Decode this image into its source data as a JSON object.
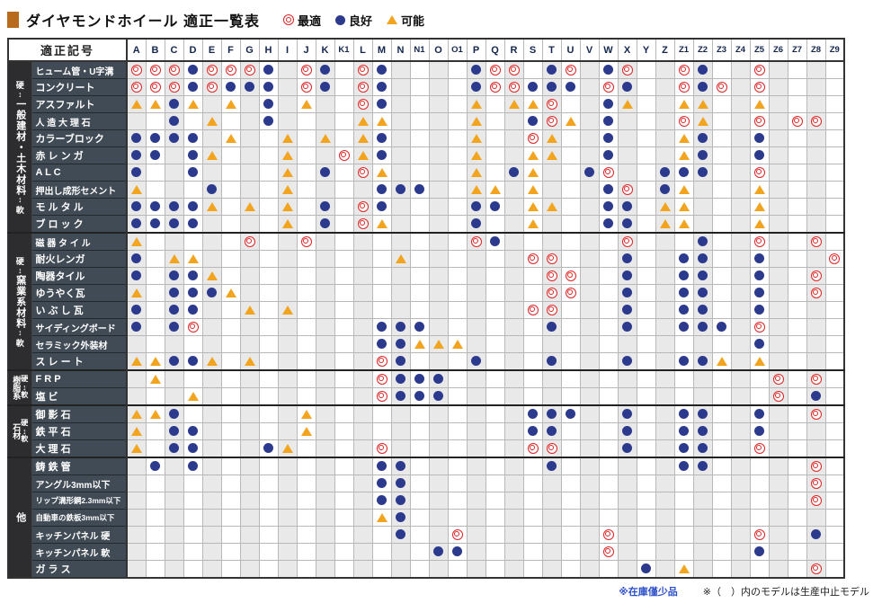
{
  "title": "ダイヤモンドホイール 適正一覧表",
  "corner_label": "適正記号",
  "legend": {
    "best": "最適",
    "good": "良好",
    "possible": "可能"
  },
  "hard_label": "硬",
  "soft_label": "軟",
  "arrow": "↕",
  "colors": {
    "best": "#dd2525",
    "good": "#2c3a8e",
    "possible": "#f2a41f",
    "accent": "#b96b1d",
    "label_bg": "#414b55",
    "group_bg": "#2d2d2f"
  },
  "columns": [
    "A",
    "B",
    "C",
    "D",
    "E",
    "F",
    "G",
    "H",
    "I",
    "J",
    "K",
    "K1",
    "L",
    "M",
    "N",
    "N1",
    "O",
    "O1",
    "P",
    "Q",
    "R",
    "S",
    "T",
    "U",
    "V",
    "W",
    "X",
    "Y",
    "Z",
    "Z1",
    "Z2",
    "Z3",
    "Z4",
    "Z5",
    "Z6",
    "Z7",
    "Z8",
    "Z9"
  ],
  "symbol_codes": {
    "b": "best",
    "g": "good",
    "p": "possible"
  },
  "groups": [
    {
      "name": "一般建材・土木材料",
      "hard_soft": "vertical",
      "rows": [
        {
          "label": "ヒューム管・U字溝",
          "marks": {
            "A": "b",
            "B": "b",
            "C": "b",
            "D": "g",
            "E": "b",
            "F": "b",
            "G": "b",
            "H": "g",
            "J": "b",
            "K": "g",
            "L": "b",
            "M": "g",
            "P": "g",
            "Q": "b",
            "R": "b",
            "T": "g",
            "U": "b",
            "W": "g",
            "X": "b",
            "Z1": "b",
            "Z2": "g",
            "Z5": "b"
          }
        },
        {
          "label": "コンクリート",
          "marks": {
            "A": "b",
            "B": "b",
            "C": "b",
            "D": "g",
            "E": "b",
            "F": "g",
            "G": "g",
            "H": "g",
            "J": "b",
            "K": "g",
            "L": "b",
            "M": "g",
            "P": "g",
            "Q": "b",
            "R": "b",
            "S": "g",
            "T": "g",
            "U": "g",
            "W": "b",
            "X": "g",
            "Z1": "b",
            "Z2": "g",
            "Z3": "b",
            "Z5": "b"
          }
        },
        {
          "label": "アスファルト",
          "marks": {
            "A": "p",
            "B": "p",
            "C": "g",
            "D": "p",
            "F": "p",
            "H": "g",
            "J": "p",
            "L": "b",
            "M": "g",
            "P": "p",
            "R": "p",
            "S": "p",
            "T": "b",
            "W": "g",
            "X": "p",
            "Z1": "p",
            "Z2": "p",
            "Z5": "p"
          }
        },
        {
          "label": "人 造 大 理 石",
          "marks": {
            "C": "g",
            "E": "p",
            "H": "g",
            "L": "p",
            "M": "p",
            "P": "p",
            "S": "g",
            "T": "b",
            "U": "p",
            "W": "g",
            "Z1": "b",
            "Z2": "p",
            "Z5": "b",
            "Z7": "b",
            "Z8": "b"
          }
        },
        {
          "label": "カラーブロック",
          "marks": {
            "A": "g",
            "B": "g",
            "C": "g",
            "D": "g",
            "F": "p",
            "I": "p",
            "K": "p",
            "L": "p",
            "M": "g",
            "P": "p",
            "S": "b",
            "T": "p",
            "W": "g",
            "Z1": "p",
            "Z2": "g",
            "Z5": "g"
          }
        },
        {
          "label": "赤 レ ン ガ",
          "marks": {
            "A": "g",
            "B": "g",
            "D": "g",
            "E": "p",
            "I": "p",
            "K1": "b",
            "L": "p",
            "M": "g",
            "P": "p",
            "S": "p",
            "T": "p",
            "W": "g",
            "Z1": "p",
            "Z2": "g",
            "Z5": "g"
          }
        },
        {
          "label": "A L C",
          "marks": {
            "A": "g",
            "D": "g",
            "I": "p",
            "K": "g",
            "L": "b",
            "M": "p",
            "P": "p",
            "R": "g",
            "S": "p",
            "V": "g",
            "W": "b",
            "Z": "g",
            "Z1": "g",
            "Z2": "g",
            "Z5": "b"
          }
        },
        {
          "label": "押出し成形セメント",
          "marks": {
            "A": "p",
            "E": "g",
            "I": "p",
            "M": "g",
            "N": "g",
            "N1": "g",
            "P": "p",
            "Q": "p",
            "S": "p",
            "W": "g",
            "X": "b",
            "Z": "g",
            "Z1": "p",
            "Z5": "p"
          }
        },
        {
          "label": "モ ル タ ル",
          "marks": {
            "A": "g",
            "B": "g",
            "C": "g",
            "D": "g",
            "E": "p",
            "G": "p",
            "I": "p",
            "K": "g",
            "L": "b",
            "M": "g",
            "P": "g",
            "Q": "g",
            "S": "p",
            "T": "p",
            "W": "g",
            "X": "g",
            "Z": "p",
            "Z1": "p",
            "Z5": "p"
          }
        },
        {
          "label": "ブ ロ ッ ク",
          "marks": {
            "A": "g",
            "B": "g",
            "C": "g",
            "D": "g",
            "I": "p",
            "K": "g",
            "L": "b",
            "M": "p",
            "P": "g",
            "S": "p",
            "W": "g",
            "X": "g",
            "Z": "p",
            "Z1": "p",
            "Z5": "p"
          }
        }
      ]
    },
    {
      "name": "窯業系材料",
      "hard_soft": "vertical",
      "rows": [
        {
          "label": "磁 器 タ イ ル",
          "marks": {
            "A": "p",
            "G": "b",
            "J": "b",
            "P": "b",
            "Q": "g",
            "X": "b",
            "Z2": "g",
            "Z5": "b",
            "Z8": "b"
          }
        },
        {
          "label": "耐火レンガ",
          "marks": {
            "A": "g",
            "C": "p",
            "D": "p",
            "N": "p",
            "S": "b",
            "T": "b",
            "X": "g",
            "Z1": "g",
            "Z2": "g",
            "Z5": "g",
            "Z9": "b"
          }
        },
        {
          "label": "陶器タイル",
          "marks": {
            "A": "g",
            "C": "g",
            "D": "g",
            "E": "p",
            "T": "b",
            "U": "b",
            "X": "g",
            "Z1": "g",
            "Z2": "g",
            "Z5": "g",
            "Z8": "b"
          }
        },
        {
          "label": "ゆうやく瓦",
          "marks": {
            "A": "p",
            "C": "g",
            "D": "g",
            "E": "g",
            "F": "p",
            "T": "b",
            "U": "b",
            "X": "g",
            "Z1": "g",
            "Z2": "g",
            "Z5": "g",
            "Z8": "b"
          }
        },
        {
          "label": "い ぶ し 瓦",
          "marks": {
            "A": "g",
            "C": "g",
            "D": "g",
            "G": "p",
            "I": "p",
            "S": "b",
            "T": "b",
            "X": "g",
            "Z1": "g",
            "Z2": "g",
            "Z5": "g"
          }
        },
        {
          "label": "サイディングボード",
          "marks": {
            "A": "g",
            "C": "g",
            "D": "b",
            "M": "g",
            "N": "g",
            "N1": "g",
            "T": "g",
            "X": "g",
            "Z1": "g",
            "Z2": "g",
            "Z3": "g",
            "Z5": "b"
          }
        },
        {
          "label": "セラミック外装材",
          "marks": {
            "M": "g",
            "N": "g",
            "N1": "p",
            "O": "p",
            "O1": "p",
            "Z5": "g"
          }
        },
        {
          "label": "ス レ ー ト",
          "marks": {
            "A": "p",
            "B": "p",
            "C": "g",
            "D": "g",
            "E": "p",
            "G": "p",
            "M": "b",
            "N": "g",
            "P": "g",
            "T": "g",
            "X": "g",
            "Z1": "g",
            "Z2": "g",
            "Z3": "p",
            "Z5": "p"
          }
        }
      ]
    },
    {
      "name": "樹脂系",
      "hard_soft": "side",
      "rows": [
        {
          "label": "F R P",
          "marks": {
            "B": "p",
            "M": "b",
            "N": "g",
            "N1": "g",
            "O": "g",
            "Z6": "b",
            "Z8": "b"
          }
        },
        {
          "label": "塩 ビ",
          "marks": {
            "D": "p",
            "M": "b",
            "N": "g",
            "N1": "g",
            "O": "g",
            "Z6": "b",
            "Z8": "g"
          }
        }
      ]
    },
    {
      "name": "石材",
      "hard_soft": "side",
      "rows": [
        {
          "label": "御 影 石",
          "marks": {
            "A": "p",
            "B": "p",
            "C": "g",
            "J": "p",
            "S": "g",
            "T": "g",
            "U": "g",
            "X": "g",
            "Z1": "g",
            "Z2": "g",
            "Z5": "g",
            "Z8": "b"
          }
        },
        {
          "label": "鉄 平 石",
          "marks": {
            "A": "p",
            "C": "g",
            "D": "g",
            "J": "p",
            "S": "g",
            "T": "g",
            "X": "g",
            "Z1": "g",
            "Z2": "g",
            "Z5": "g"
          }
        },
        {
          "label": "大 理 石",
          "marks": {
            "A": "p",
            "C": "g",
            "D": "g",
            "H": "g",
            "I": "p",
            "M": "b",
            "S": "b",
            "T": "b",
            "X": "g",
            "Z1": "g",
            "Z2": "g",
            "Z5": "b"
          }
        }
      ]
    },
    {
      "name": "他",
      "hard_soft": "none",
      "rows": [
        {
          "label": "鋳 鉄 管",
          "marks": {
            "B": "g",
            "D": "g",
            "M": "g",
            "N": "g",
            "T": "g",
            "Z1": "g",
            "Z2": "g",
            "Z8": "b"
          }
        },
        {
          "label": "アングル3mm以下",
          "marks": {
            "M": "g",
            "N": "g",
            "Z8": "b"
          }
        },
        {
          "label": "リップ溝形鋼2.3mm以下",
          "marks": {
            "M": "g",
            "N": "g",
            "Z8": "b"
          }
        },
        {
          "label": "自動車の鉄板3mm以下",
          "marks": {
            "M": "p",
            "N": "g"
          }
        },
        {
          "label": "キッチンパネル 硬",
          "marks": {
            "N": "g",
            "O1": "b",
            "W": "b",
            "Z5": "b",
            "Z8": "g"
          }
        },
        {
          "label": "キッチンパネル 軟",
          "marks": {
            "O": "g",
            "O1": "g",
            "W": "b",
            "Z5": "g"
          }
        },
        {
          "label": "ガ ラ ス",
          "marks": {
            "Y": "g",
            "Z1": "p",
            "Z8": "b"
          }
        }
      ]
    }
  ],
  "footnotes": {
    "stock": "※在庫僅少品",
    "discontinued": "※（　）内のモデルは生産中止モデル"
  }
}
